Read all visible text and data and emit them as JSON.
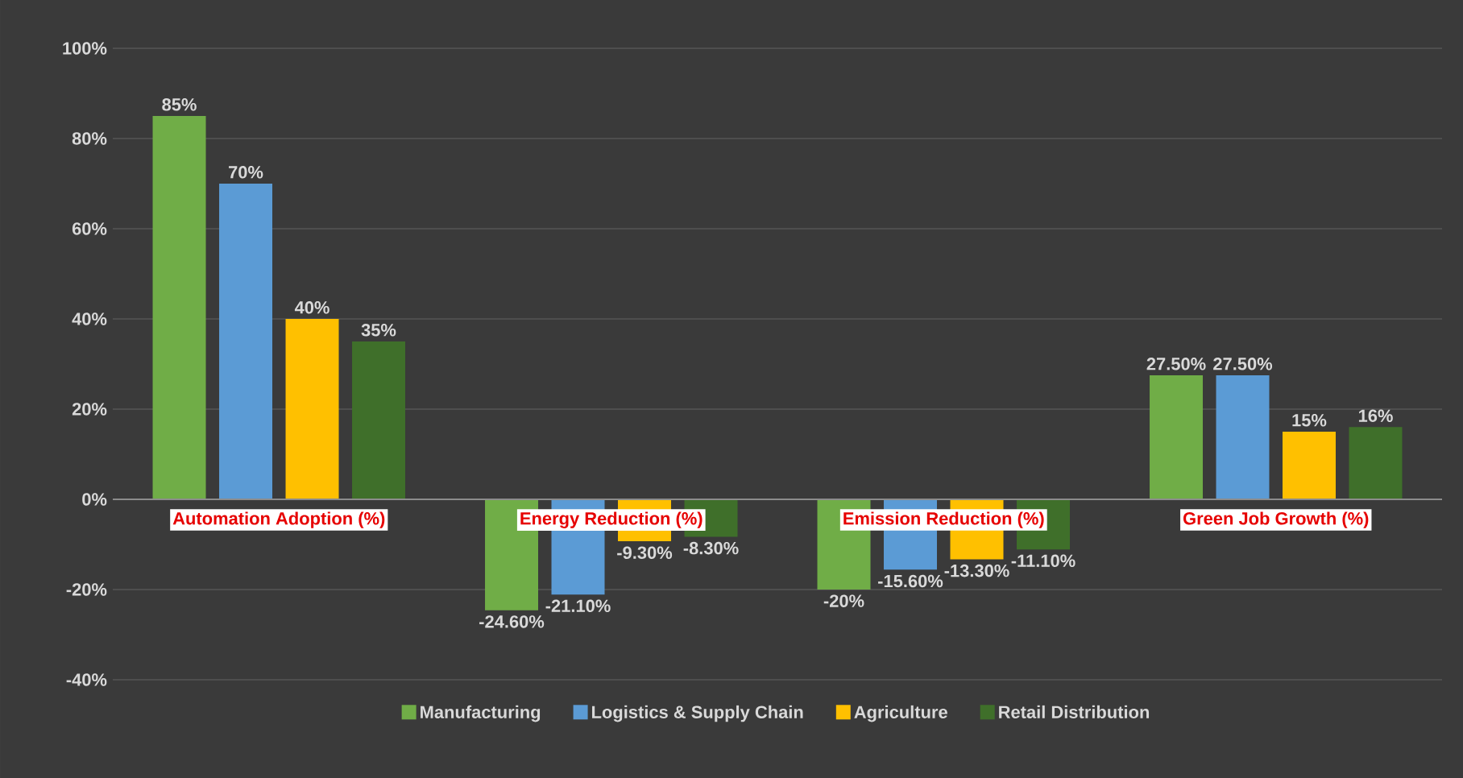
{
  "chart_data": {
    "type": "bar",
    "categories": [
      "Automation Adoption (%)",
      "Energy Reduction (%)",
      "Emission Reduction (%)",
      "Green Job Growth (%)"
    ],
    "series": [
      {
        "name": "Manufacturing",
        "color": "#70ad47",
        "values": [
          85,
          -24.6,
          -20,
          27.5
        ],
        "value_labels": [
          "85%",
          "-24.60%",
          "-20%",
          "27.50%"
        ]
      },
      {
        "name": "Logistics & Supply Chain",
        "color": "#5b9bd5",
        "values": [
          70,
          -21.1,
          -15.6,
          27.5
        ],
        "value_labels": [
          "70%",
          "-21.10%",
          "-15.60%",
          "27.50%"
        ]
      },
      {
        "name": "Agriculture",
        "color": "#ffc000",
        "values": [
          40,
          -9.3,
          -13.3,
          15
        ],
        "value_labels": [
          "40%",
          "-9.30%",
          "-13.30%",
          "15%"
        ]
      },
      {
        "name": "Retail Distribution",
        "color": "#3f6f2a",
        "values": [
          35,
          -8.3,
          -11.1,
          16
        ],
        "value_labels": [
          "35%",
          "-8.30%",
          "-11.10%",
          "16%"
        ]
      }
    ],
    "ylim": [
      -40,
      100
    ],
    "yticks": [
      {
        "value": -40,
        "label": "-40%"
      },
      {
        "value": -20,
        "label": "-20%"
      },
      {
        "value": 0,
        "label": "0%"
      },
      {
        "value": 20,
        "label": "20%"
      },
      {
        "value": 40,
        "label": "40%"
      },
      {
        "value": 60,
        "label": "60%"
      },
      {
        "value": 80,
        "label": "80%"
      },
      {
        "value": 100,
        "label": "100%"
      }
    ],
    "grid": "y",
    "legend": "bottom"
  }
}
